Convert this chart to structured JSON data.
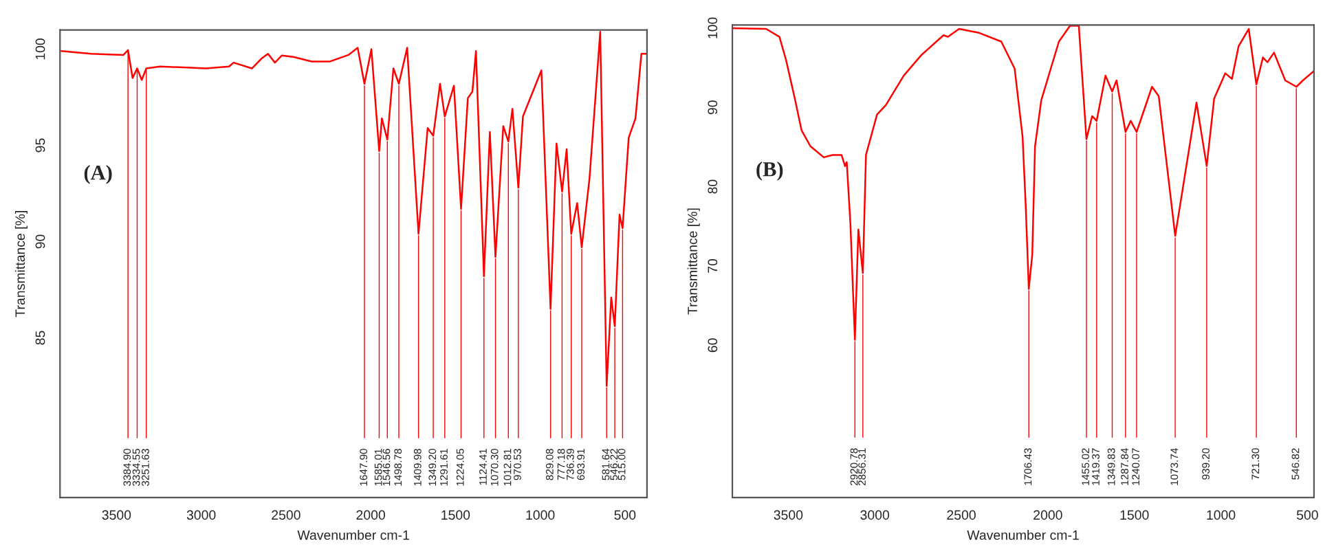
{
  "chart_data": [
    {
      "type": "line",
      "xlabel": "Wavenumber cm-1",
      "ylabel": "Transmittance [%]",
      "x": [
        3825,
        3649,
        3459,
        3432,
        3405,
        3378,
        3351,
        3324,
        3243,
        3107,
        2972,
        2836,
        2809,
        2701,
        2646,
        2606,
        2565,
        2525,
        2457,
        2348,
        2240,
        2131,
        2077,
        2037,
        1996,
        1950,
        1934,
        1902,
        1866,
        1834,
        1785,
        1718,
        1664,
        1631,
        1591,
        1563,
        1509,
        1467,
        1427,
        1400,
        1379,
        1332,
        1297,
        1264,
        1218,
        1188,
        1164,
        1129,
        1102,
        993,
        939,
        904,
        871,
        844,
        817,
        782,
        755,
        709,
        646,
        608,
        581,
        560,
        532,
        514,
        478,
        438,
        403,
        370
      ],
      "series": [
        {
          "color": "#ff0000",
          "values": [
            99.9,
            99.76,
            99.7,
            99.95,
            98.5,
            99.0,
            98.4,
            99.0,
            99.1,
            99.05,
            99.0,
            99.1,
            99.3,
            99.0,
            99.5,
            99.76,
            99.3,
            99.67,
            99.6,
            99.36,
            99.36,
            99.7,
            100.07,
            98.2,
            100.0,
            94.7,
            96.4,
            95.3,
            99.0,
            98.2,
            100.07,
            90.4,
            95.9,
            95.5,
            98.2,
            96.5,
            98.1,
            91.7,
            97.45,
            97.8,
            99.9,
            88.2,
            95.7,
            89.2,
            96.0,
            95.2,
            96.9,
            92.8,
            96.5,
            98.9,
            86.5,
            95.1,
            92.6,
            94.8,
            90.4,
            92.0,
            89.7,
            93.3,
            100.9,
            82.5,
            87.1,
            85.6,
            91.4,
            90.7,
            95.4,
            96.4,
            99.76,
            99.76
          ]
        }
      ],
      "xlim": [
        3833,
        370
      ],
      "xticks": [
        3500,
        3000,
        2500,
        2000,
        1500,
        1000,
        500
      ],
      "ylim": [
        76.7,
        101.0
      ],
      "yticks": [
        85,
        90,
        95,
        100
      ],
      "annotations": [
        "(A)",
        {
          "text": "3384.90",
          "x": 3432,
          "y": 99.95
        },
        {
          "text": "3334.55",
          "x": 3378,
          "y": 99.0
        },
        {
          "text": "3251.63",
          "x": 3324,
          "y": 99.0
        },
        {
          "text": "1647.90",
          "x": 2037,
          "y": 98.2
        },
        {
          "text": "1585.01",
          "x": 1950,
          "y": 94.7
        },
        {
          "text": "1546.56",
          "x": 1902,
          "y": 95.3
        },
        {
          "text": "1498.78",
          "x": 1834,
          "y": 98.2
        },
        {
          "text": "1409.98",
          "x": 1718,
          "y": 90.4
        },
        {
          "text": "1349.20",
          "x": 1631,
          "y": 95.5
        },
        {
          "text": "1291.61",
          "x": 1563,
          "y": 96.5
        },
        {
          "text": "1224.05",
          "x": 1467,
          "y": 91.7
        },
        {
          "text": "1124.41",
          "x": 1332,
          "y": 88.2
        },
        {
          "text": "1070.30",
          "x": 1264,
          "y": 89.2
        },
        {
          "text": "1012.81",
          "x": 1188,
          "y": 95.2
        },
        {
          "text": "970.53",
          "x": 1129,
          "y": 92.8
        },
        {
          "text": "829.08",
          "x": 939,
          "y": 86.5
        },
        {
          "text": "777.18",
          "x": 871,
          "y": 92.6
        },
        {
          "text": "736.39",
          "x": 817,
          "y": 90.4
        },
        {
          "text": "693.91",
          "x": 755,
          "y": 89.7
        },
        {
          "text": "581.64",
          "x": 608,
          "y": 82.5
        },
        {
          "text": "546.22",
          "x": 560,
          "y": 85.6
        },
        {
          "text": "515.00",
          "x": 514,
          "y": 90.7
        }
      ]
    },
    {
      "type": "line",
      "xlabel": "Wavenumber cm-1",
      "ylabel": "Transmittance [%]",
      "x": [
        3823,
        3628,
        3551,
        3513,
        3462,
        3423,
        3372,
        3295,
        3244,
        3192,
        3172,
        3162,
        3141,
        3115,
        3095,
        3069,
        3051,
        2987,
        2936,
        2833,
        2731,
        2603,
        2577,
        2513,
        2397,
        2269,
        2192,
        2146,
        2128,
        2110,
        2090,
        2074,
        2038,
        1936,
        1872,
        1821,
        1777,
        1744,
        1718,
        1667,
        1628,
        1603,
        1551,
        1521,
        1487,
        1398,
        1359,
        1264,
        1141,
        1082,
        1039,
        975,
        936,
        898,
        839,
        795,
        757,
        731,
        693,
        628,
        564,
        526,
        462
      ],
      "series": [
        {
          "color": "#ff0000",
          "values": [
            100,
            99.9,
            98.9,
            96.0,
            91.1,
            87.1,
            85.1,
            83.7,
            84.0,
            84.0,
            82.6,
            83.1,
            75.4,
            60.7,
            74.6,
            69.1,
            84.0,
            89.1,
            90.3,
            94.0,
            96.6,
            99.1,
            98.9,
            99.9,
            99.4,
            98.3,
            94.9,
            86.3,
            77.7,
            67.1,
            71.4,
            85.1,
            90.9,
            98.3,
            100.3,
            100.3,
            86.0,
            88.9,
            88.3,
            94.0,
            92.0,
            93.4,
            86.9,
            88.3,
            86.9,
            92.6,
            91.4,
            73.8,
            90.6,
            82.6,
            91.1,
            94.3,
            93.6,
            97.7,
            99.9,
            92.9,
            96.3,
            95.7,
            96.9,
            93.4,
            92.6,
            93.4,
            94.6
          ]
        }
      ],
      "xlim": [
        3823,
        462
      ],
      "xticks": [
        3500,
        3000,
        2500,
        2000,
        1500,
        1000,
        500
      ],
      "ylim": [
        40.8,
        100.4
      ],
      "yticks": [
        60,
        70,
        80,
        90,
        100
      ],
      "annotations": [
        "(B)",
        {
          "text": "2920.78",
          "x": 3115,
          "y": 60.7
        },
        {
          "text": "2856.31",
          "x": 3069,
          "y": 69.1
        },
        {
          "text": "1706.43",
          "x": 2110,
          "y": 67.1
        },
        {
          "text": "1455.02",
          "x": 1777,
          "y": 86.0
        },
        {
          "text": "1419.37",
          "x": 1718,
          "y": 88.3
        },
        {
          "text": "1349.83",
          "x": 1628,
          "y": 92.0
        },
        {
          "text": "1287.84",
          "x": 1551,
          "y": 86.9
        },
        {
          "text": "1240.07",
          "x": 1487,
          "y": 86.9
        },
        {
          "text": "1073.74",
          "x": 1264,
          "y": 73.8
        },
        {
          "text": "939.20",
          "x": 1082,
          "y": 82.6
        },
        {
          "text": "721.30",
          "x": 795,
          "y": 92.9
        },
        {
          "text": "546.82",
          "x": 564,
          "y": 92.6
        }
      ]
    }
  ]
}
